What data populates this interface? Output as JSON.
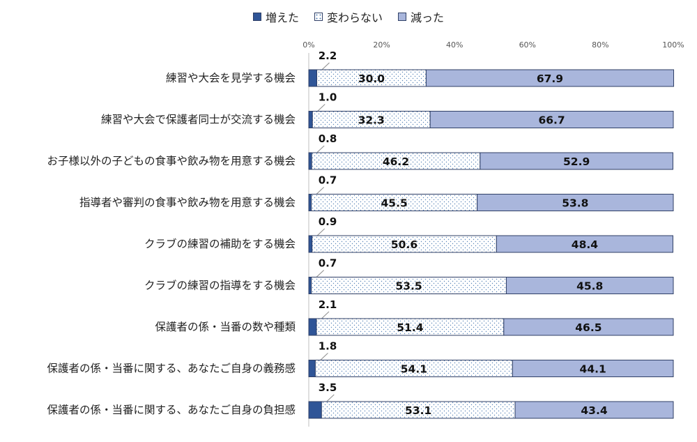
{
  "chart_data": {
    "type": "bar",
    "orientation": "horizontal",
    "stacked": "percent",
    "title": "",
    "xlabel": "",
    "ylabel": "",
    "xlim": [
      0,
      100
    ],
    "x_ticks": [
      "0%",
      "20%",
      "40%",
      "60%",
      "80%",
      "100%"
    ],
    "legend_position": "top",
    "categories": [
      "練習や大会を見学する機会",
      "練習や大会で保護者同士が交流する機会",
      "お子様以外の子どもの食事や飲み物を用意する機会",
      "指導者や審判の食事や飲み物を用意する機会",
      "クラブの練習の補助をする機会",
      "クラブの練習の指導をする機会",
      "保護者の係・当番の数や種類",
      "保護者の係・当番に関する、あなたご自身の義務感",
      "保護者の係・当番に関する、あなたご自身の負担感"
    ],
    "series": [
      {
        "name": "増えた",
        "color": "#2f5597",
        "values": [
          2.2,
          1.0,
          0.8,
          0.7,
          0.9,
          0.7,
          2.1,
          1.8,
          3.5
        ]
      },
      {
        "name": "変わらない",
        "color": "#ffffff",
        "pattern": "dots",
        "values": [
          30.0,
          32.3,
          46.2,
          45.5,
          50.6,
          53.5,
          51.4,
          54.1,
          53.1
        ]
      },
      {
        "name": "減った",
        "color": "#a9b6dc",
        "values": [
          67.9,
          66.7,
          52.9,
          53.8,
          48.4,
          45.8,
          46.5,
          44.1,
          43.4
        ]
      }
    ]
  }
}
